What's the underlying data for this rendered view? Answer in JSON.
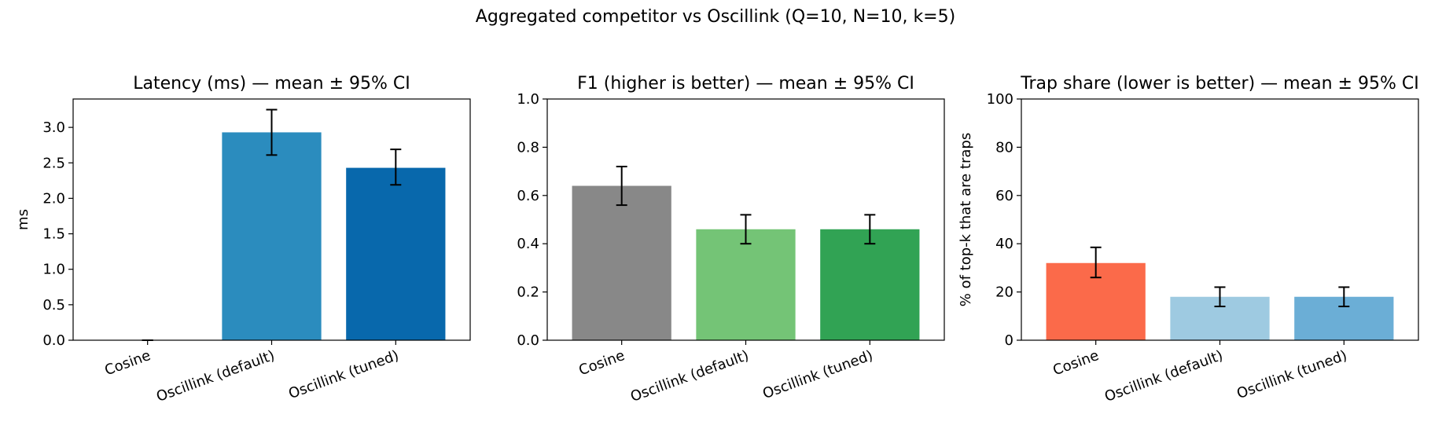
{
  "figure": {
    "suptitle": "Aggregated competitor vs Oscillink (Q=10, N=10, k=5)"
  },
  "chart_data": [
    {
      "type": "bar",
      "title": "Latency (ms) — mean ± 95% CI",
      "xlabel": "",
      "ylabel": "ms",
      "categories": [
        "Cosine",
        "Oscillink (default)",
        "Oscillink (tuned)"
      ],
      "values": [
        0.0,
        2.93,
        2.43
      ],
      "ci_low": [
        0.0,
        2.61,
        2.19
      ],
      "ci_high": [
        0.0,
        3.25,
        2.69
      ],
      "colors": [
        "#2b8cbe",
        "#2b8cbe",
        "#0868ac"
      ],
      "ylim": [
        0,
        3.4
      ],
      "yticks": [
        0.0,
        0.5,
        1.0,
        1.5,
        2.0,
        2.5,
        3.0
      ],
      "ytick_labels": [
        "0.0",
        "0.5",
        "1.0",
        "1.5",
        "2.0",
        "2.5",
        "3.0"
      ],
      "grid": false,
      "legend": "none"
    },
    {
      "type": "bar",
      "title": "F1 (higher is better) — mean ± 95% CI",
      "xlabel": "",
      "ylabel": "",
      "categories": [
        "Cosine",
        "Oscillink (default)",
        "Oscillink (tuned)"
      ],
      "values": [
        0.64,
        0.46,
        0.46
      ],
      "ci_low": [
        0.56,
        0.4,
        0.4
      ],
      "ci_high": [
        0.72,
        0.52,
        0.52
      ],
      "colors": [
        "#888888",
        "#74c476",
        "#31a354"
      ],
      "ylim": [
        0,
        1.0
      ],
      "yticks": [
        0.0,
        0.2,
        0.4,
        0.6,
        0.8,
        1.0
      ],
      "ytick_labels": [
        "0.0",
        "0.2",
        "0.4",
        "0.6",
        "0.8",
        "1.0"
      ],
      "grid": false,
      "legend": "none"
    },
    {
      "type": "bar",
      "title": "Trap share (lower is better) — mean ± 95% CI",
      "xlabel": "",
      "ylabel": "% of top-k that are traps",
      "categories": [
        "Cosine",
        "Oscillink (default)",
        "Oscillink (tuned)"
      ],
      "values": [
        32,
        18,
        18
      ],
      "ci_low": [
        26,
        14,
        14
      ],
      "ci_high": [
        38.5,
        22,
        22
      ],
      "colors": [
        "#fb6a4a",
        "#9ecae1",
        "#6baed6"
      ],
      "ylim": [
        0,
        100
      ],
      "yticks": [
        0,
        20,
        40,
        60,
        80,
        100
      ],
      "ytick_labels": [
        "0",
        "20",
        "40",
        "60",
        "80",
        "100"
      ],
      "grid": false,
      "legend": "none"
    }
  ]
}
